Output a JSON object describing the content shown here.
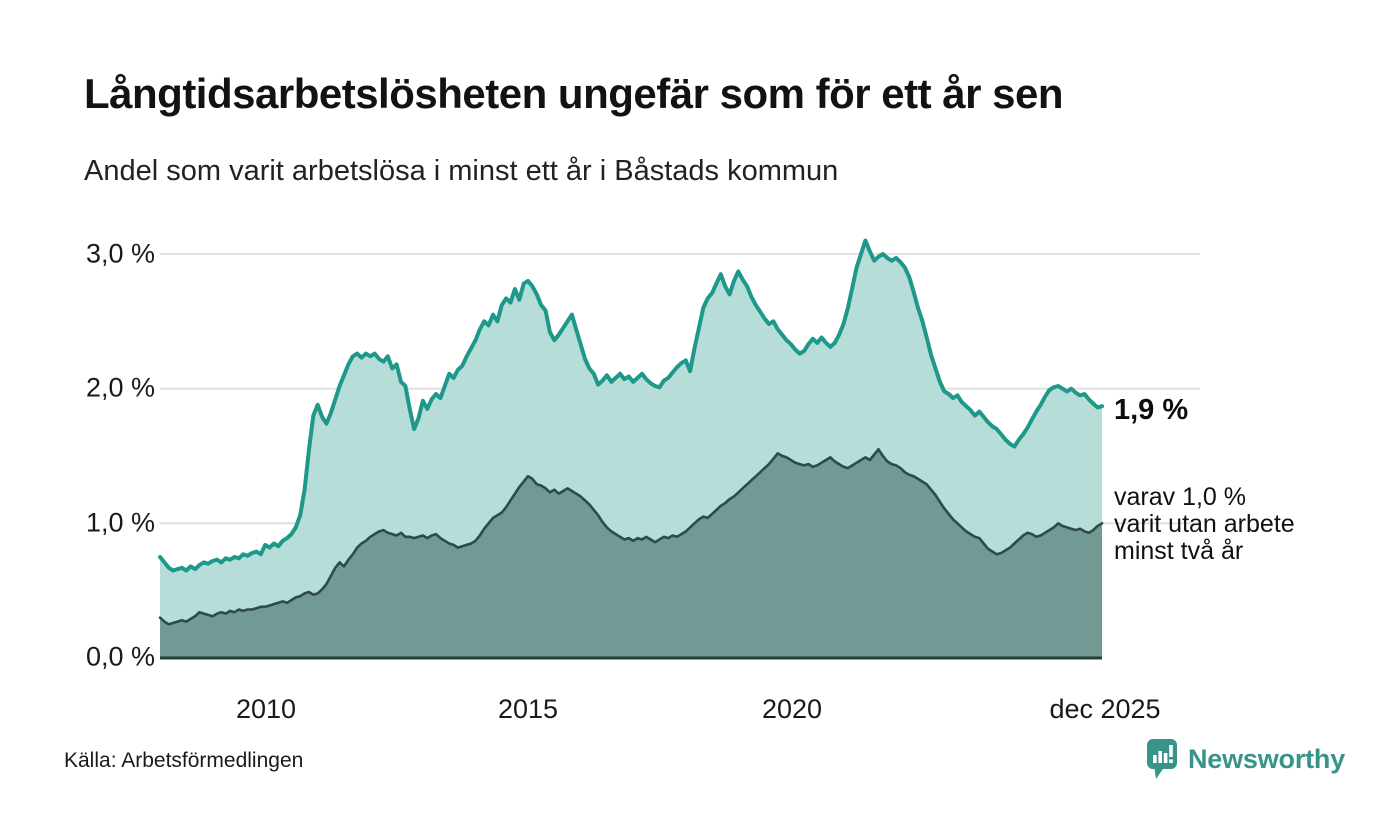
{
  "header": {
    "title": "Långtidsarbetslösheten ungefär som för ett år sen",
    "subtitle": "Andel som varit arbetslösa i minst ett år i Båstads kommun"
  },
  "axes": {
    "y_ticks": [
      "3,0 %",
      "2,0 %",
      "1,0 %",
      "0,0 %"
    ],
    "x_ticks": [
      "2010",
      "2015",
      "2020",
      "dec 2025"
    ]
  },
  "annotations": {
    "end_label_total": "1,9 %",
    "end_label_secondary_line1": "varav 1,0 %",
    "end_label_secondary_line2": "varit utan arbete",
    "end_label_secondary_line3": "minst två år"
  },
  "footer": {
    "source": "Källa: Arbetsförmedlingen",
    "brand": "Newsworthy"
  },
  "colors": {
    "total_line": "#1e988b",
    "total_fill": "#b6ddd7",
    "two_year_line": "#2e4b47",
    "two_year_fill": "#709a93",
    "gridline": "#e1e1e4",
    "brand_teal": "#38948a"
  },
  "chart_data": {
    "type": "area",
    "title": "Långtidsarbetslösheten ungefär som för ett år sen",
    "subtitle": "Andel som varit arbetslösa i minst ett år i Båstads kommun",
    "unit": "%",
    "frequency": "monthly",
    "x_start": "2008-01",
    "x_end": "2025-12",
    "xlabel_ticks": [
      "2010",
      "2015",
      "2020",
      "dec 2025"
    ],
    "ylabel_ticks": [
      3.0,
      2.0,
      1.0,
      0.0
    ],
    "ylim": [
      0,
      3.2
    ],
    "grid": true,
    "legend_position": "right-edge-annotations",
    "series": [
      {
        "id": "total",
        "name": "arbetslösa minst ett år",
        "end_value_label": "1,9 %",
        "color": "#1e988b",
        "fill": "#b6ddd7",
        "values": [
          0.75,
          0.71,
          0.67,
          0.65,
          0.66,
          0.67,
          0.65,
          0.68,
          0.66,
          0.69,
          0.71,
          0.7,
          0.72,
          0.73,
          0.71,
          0.74,
          0.73,
          0.75,
          0.74,
          0.77,
          0.76,
          0.78,
          0.79,
          0.77,
          0.84,
          0.82,
          0.85,
          0.83,
          0.87,
          0.89,
          0.92,
          0.97,
          1.06,
          1.25,
          1.55,
          1.8,
          1.88,
          1.79,
          1.74,
          1.82,
          1.92,
          2.02,
          2.1,
          2.18,
          2.24,
          2.26,
          2.23,
          2.26,
          2.24,
          2.26,
          2.22,
          2.2,
          2.24,
          2.15,
          2.18,
          2.05,
          2.02,
          1.85,
          1.7,
          1.78,
          1.91,
          1.85,
          1.92,
          1.96,
          1.93,
          2.02,
          2.11,
          2.08,
          2.14,
          2.17,
          2.24,
          2.3,
          2.36,
          2.44,
          2.5,
          2.47,
          2.55,
          2.5,
          2.62,
          2.67,
          2.64,
          2.74,
          2.66,
          2.78,
          2.8,
          2.76,
          2.7,
          2.62,
          2.58,
          2.42,
          2.36,
          2.4,
          2.45,
          2.5,
          2.55,
          2.44,
          2.33,
          2.22,
          2.15,
          2.11,
          2.03,
          2.06,
          2.1,
          2.05,
          2.08,
          2.11,
          2.07,
          2.09,
          2.05,
          2.08,
          2.11,
          2.07,
          2.04,
          2.02,
          2.01,
          2.06,
          2.08,
          2.12,
          2.16,
          2.19,
          2.21,
          2.13,
          2.3,
          2.45,
          2.6,
          2.67,
          2.71,
          2.78,
          2.85,
          2.76,
          2.7,
          2.8,
          2.87,
          2.81,
          2.76,
          2.68,
          2.62,
          2.57,
          2.52,
          2.48,
          2.5,
          2.44,
          2.4,
          2.36,
          2.33,
          2.29,
          2.26,
          2.28,
          2.33,
          2.37,
          2.34,
          2.38,
          2.34,
          2.31,
          2.34,
          2.4,
          2.48,
          2.6,
          2.75,
          2.9,
          3.0,
          3.1,
          3.02,
          2.95,
          2.98,
          3.0,
          2.97,
          2.95,
          2.97,
          2.94,
          2.9,
          2.83,
          2.72,
          2.6,
          2.5,
          2.38,
          2.25,
          2.15,
          2.05,
          1.98,
          1.96,
          1.93,
          1.95,
          1.9,
          1.87,
          1.84,
          1.8,
          1.83,
          1.79,
          1.75,
          1.72,
          1.7,
          1.66,
          1.62,
          1.59,
          1.57,
          1.62,
          1.66,
          1.71,
          1.77,
          1.83,
          1.88,
          1.94,
          1.99,
          2.01,
          2.02,
          2.0,
          1.98,
          2.0,
          1.97,
          1.95,
          1.96,
          1.92,
          1.89,
          1.86,
          1.87
        ]
      },
      {
        "id": "twoyear",
        "name": "varav utan arbete minst två år",
        "end_value_label": "varav 1,0 % varit utan arbete minst två år",
        "color": "#2e4b47",
        "fill": "#709a93",
        "values": [
          0.3,
          0.27,
          0.25,
          0.26,
          0.27,
          0.28,
          0.27,
          0.29,
          0.31,
          0.34,
          0.33,
          0.32,
          0.31,
          0.33,
          0.34,
          0.33,
          0.35,
          0.34,
          0.36,
          0.35,
          0.36,
          0.36,
          0.37,
          0.38,
          0.38,
          0.39,
          0.4,
          0.41,
          0.42,
          0.41,
          0.43,
          0.45,
          0.46,
          0.48,
          0.49,
          0.47,
          0.48,
          0.51,
          0.55,
          0.61,
          0.67,
          0.71,
          0.68,
          0.73,
          0.77,
          0.82,
          0.85,
          0.87,
          0.9,
          0.92,
          0.94,
          0.95,
          0.93,
          0.92,
          0.91,
          0.93,
          0.9,
          0.9,
          0.89,
          0.9,
          0.91,
          0.89,
          0.91,
          0.92,
          0.89,
          0.87,
          0.85,
          0.84,
          0.82,
          0.83,
          0.84,
          0.85,
          0.87,
          0.91,
          0.96,
          1.0,
          1.04,
          1.06,
          1.08,
          1.12,
          1.17,
          1.22,
          1.27,
          1.31,
          1.35,
          1.33,
          1.29,
          1.28,
          1.26,
          1.23,
          1.25,
          1.22,
          1.24,
          1.26,
          1.24,
          1.22,
          1.2,
          1.17,
          1.14,
          1.1,
          1.06,
          1.01,
          0.97,
          0.94,
          0.92,
          0.9,
          0.88,
          0.89,
          0.87,
          0.89,
          0.88,
          0.9,
          0.88,
          0.86,
          0.88,
          0.9,
          0.89,
          0.91,
          0.9,
          0.92,
          0.94,
          0.97,
          1.0,
          1.03,
          1.05,
          1.04,
          1.07,
          1.1,
          1.13,
          1.15,
          1.18,
          1.2,
          1.23,
          1.26,
          1.29,
          1.32,
          1.35,
          1.38,
          1.41,
          1.44,
          1.48,
          1.52,
          1.5,
          1.49,
          1.47,
          1.45,
          1.44,
          1.43,
          1.44,
          1.42,
          1.43,
          1.45,
          1.47,
          1.49,
          1.46,
          1.44,
          1.42,
          1.41,
          1.43,
          1.45,
          1.47,
          1.49,
          1.47,
          1.51,
          1.55,
          1.5,
          1.46,
          1.44,
          1.43,
          1.41,
          1.38,
          1.36,
          1.35,
          1.33,
          1.31,
          1.29,
          1.25,
          1.21,
          1.16,
          1.11,
          1.07,
          1.03,
          1.0,
          0.97,
          0.94,
          0.92,
          0.9,
          0.89,
          0.85,
          0.81,
          0.79,
          0.77,
          0.78,
          0.8,
          0.82,
          0.85,
          0.88,
          0.91,
          0.93,
          0.92,
          0.9,
          0.91,
          0.93,
          0.95,
          0.97,
          1.0,
          0.98,
          0.97,
          0.96,
          0.95,
          0.96,
          0.94,
          0.93,
          0.95,
          0.98,
          1.0
        ]
      }
    ]
  }
}
